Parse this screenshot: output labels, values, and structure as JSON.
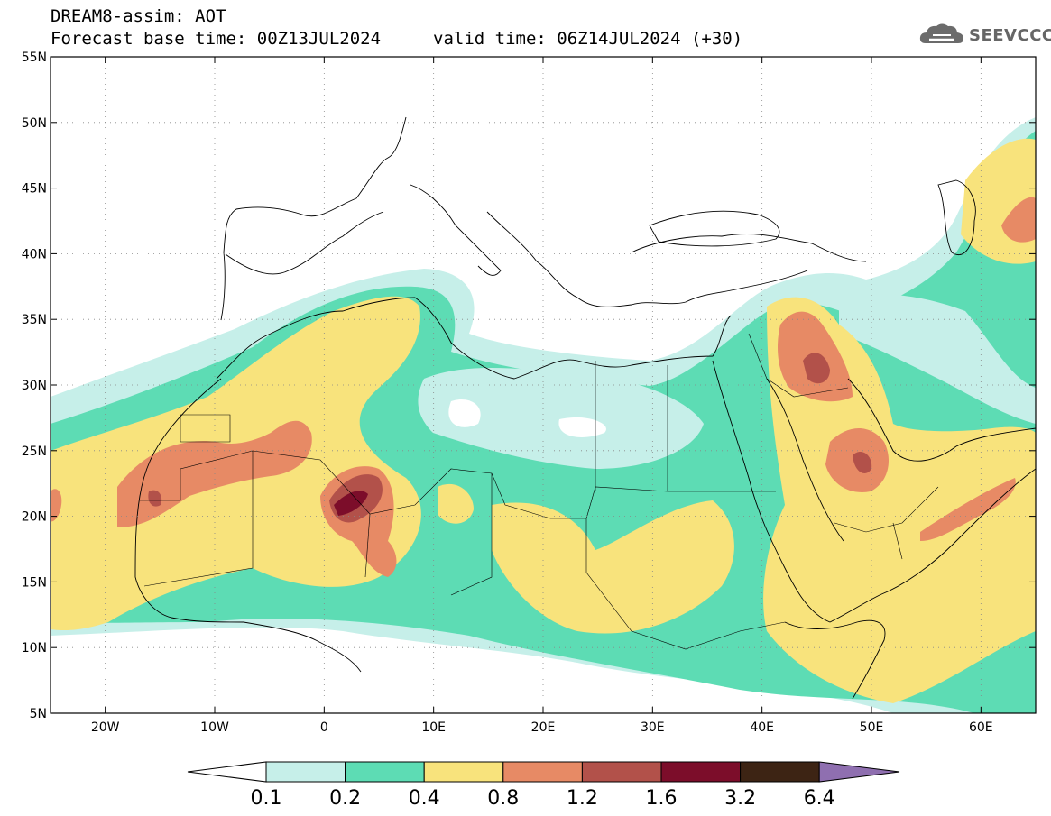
{
  "header": {
    "model_line": "DREAM8-assim: AOT",
    "base_time_line": "Forecast base time: 00Z13JUL2024",
    "valid_time_line": "valid time: 06Z14JUL2024 (+30)"
  },
  "logo": {
    "text": "SEEVCCC",
    "icon": "cloud-icon"
  },
  "map": {
    "lon_range": [
      -25,
      65
    ],
    "lat_range": [
      5,
      55
    ],
    "lat_ticks": [
      {
        "value": 55,
        "label": "55N"
      },
      {
        "value": 50,
        "label": "50N"
      },
      {
        "value": 45,
        "label": "45N"
      },
      {
        "value": 40,
        "label": "40N"
      },
      {
        "value": 35,
        "label": "35N"
      },
      {
        "value": 30,
        "label": "30N"
      },
      {
        "value": 25,
        "label": "25N"
      },
      {
        "value": 20,
        "label": "20N"
      },
      {
        "value": 15,
        "label": "15N"
      },
      {
        "value": 10,
        "label": "10N"
      },
      {
        "value": 5,
        "label": "5N"
      }
    ],
    "lon_ticks": [
      {
        "value": -20,
        "label": "20W"
      },
      {
        "value": -10,
        "label": "10W"
      },
      {
        "value": 0,
        "label": "0"
      },
      {
        "value": 10,
        "label": "10E"
      },
      {
        "value": 20,
        "label": "20E"
      },
      {
        "value": 30,
        "label": "30E"
      },
      {
        "value": 40,
        "label": "40E"
      },
      {
        "value": 50,
        "label": "50E"
      },
      {
        "value": 60,
        "label": "60E"
      }
    ],
    "gridlines": "dotted"
  },
  "colorbar": {
    "levels": [
      "0.1",
      "0.2",
      "0.4",
      "0.8",
      "1.2",
      "1.6",
      "3.2",
      "6.4"
    ],
    "colors": [
      "#ffffff",
      "#c6efe9",
      "#5ddcb4",
      "#f8e37c",
      "#e78a65",
      "#b2514a",
      "#7c0d2a",
      "#3d2414",
      "#8f6fb0"
    ]
  }
}
